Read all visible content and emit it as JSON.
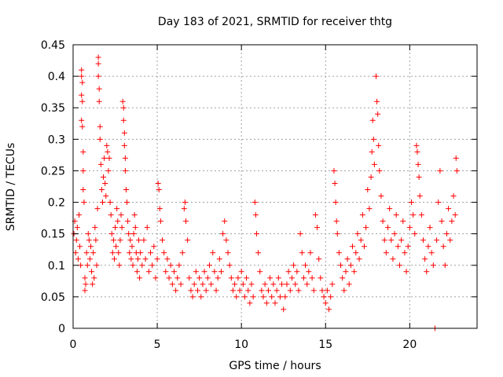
{
  "chart_data": {
    "type": "scatter",
    "title": "Day 183 of 2021, SRMTID for receiver thtg",
    "xlabel": "GPS time / hours",
    "ylabel": "SRMTID / TECUs",
    "xlim": [
      0,
      24
    ],
    "ylim": [
      0,
      0.45
    ],
    "grid": true,
    "marker": "+",
    "marker_color": "#ff0000",
    "x_ticks": [
      0,
      5,
      10,
      15,
      20
    ],
    "x_tick_labels": [
      "0",
      "5",
      "10",
      "15",
      "20"
    ],
    "y_ticks": [
      0,
      0.05,
      0.1,
      0.15,
      0.2,
      0.25,
      0.3,
      0.35,
      0.4,
      0.45
    ],
    "y_tick_labels": [
      "0",
      "0.05",
      "0.1",
      "0.15",
      "0.2",
      "0.25",
      "0.3",
      "0.35",
      "0.4",
      "0.45"
    ],
    "series": [
      {
        "name": "SRMTID",
        "points": [
          [
            0.05,
            0.15
          ],
          [
            0.1,
            0.17
          ],
          [
            0.15,
            0.12
          ],
          [
            0.2,
            0.14
          ],
          [
            0.25,
            0.16
          ],
          [
            0.3,
            0.11
          ],
          [
            0.35,
            0.18
          ],
          [
            0.4,
            0.13
          ],
          [
            0.45,
            0.1
          ],
          [
            0.5,
            0.41
          ],
          [
            0.5,
            0.4
          ],
          [
            0.5,
            0.37
          ],
          [
            0.5,
            0.33
          ],
          [
            0.55,
            0.39
          ],
          [
            0.55,
            0.36
          ],
          [
            0.55,
            0.32
          ],
          [
            0.6,
            0.28
          ],
          [
            0.6,
            0.25
          ],
          [
            0.6,
            0.22
          ],
          [
            0.65,
            0.2
          ],
          [
            0.7,
            0.08
          ],
          [
            0.7,
            0.06
          ],
          [
            0.75,
            0.07
          ],
          [
            0.8,
            0.12
          ],
          [
            0.85,
            0.1
          ],
          [
            0.9,
            0.15
          ],
          [
            0.95,
            0.14
          ],
          [
            1.0,
            0.11
          ],
          [
            1.05,
            0.13
          ],
          [
            1.1,
            0.09
          ],
          [
            1.15,
            0.07
          ],
          [
            1.2,
            0.12
          ],
          [
            1.25,
            0.08
          ],
          [
            1.3,
            0.16
          ],
          [
            1.35,
            0.14
          ],
          [
            1.4,
            0.1
          ],
          [
            1.45,
            0.19
          ],
          [
            1.5,
            0.43
          ],
          [
            1.5,
            0.42
          ],
          [
            1.5,
            0.4
          ],
          [
            1.55,
            0.38
          ],
          [
            1.55,
            0.36
          ],
          [
            1.6,
            0.32
          ],
          [
            1.6,
            0.3
          ],
          [
            1.65,
            0.26
          ],
          [
            1.7,
            0.22
          ],
          [
            1.75,
            0.2
          ],
          [
            1.8,
            0.24
          ],
          [
            1.85,
            0.27
          ],
          [
            1.9,
            0.23
          ],
          [
            1.95,
            0.21
          ],
          [
            2.0,
            0.29
          ],
          [
            2.05,
            0.28
          ],
          [
            2.1,
            0.25
          ],
          [
            2.15,
            0.27
          ],
          [
            2.2,
            0.2
          ],
          [
            2.25,
            0.18
          ],
          [
            2.3,
            0.15
          ],
          [
            2.35,
            0.12
          ],
          [
            2.4,
            0.14
          ],
          [
            2.45,
            0.11
          ],
          [
            2.5,
            0.16
          ],
          [
            2.55,
            0.13
          ],
          [
            2.6,
            0.19
          ],
          [
            2.65,
            0.17
          ],
          [
            2.7,
            0.12
          ],
          [
            2.75,
            0.1
          ],
          [
            2.8,
            0.14
          ],
          [
            2.85,
            0.18
          ],
          [
            2.9,
            0.16
          ],
          [
            2.95,
            0.36
          ],
          [
            3.0,
            0.35
          ],
          [
            3.0,
            0.33
          ],
          [
            3.05,
            0.31
          ],
          [
            3.05,
            0.29
          ],
          [
            3.1,
            0.27
          ],
          [
            3.1,
            0.25
          ],
          [
            3.15,
            0.22
          ],
          [
            3.2,
            0.2
          ],
          [
            3.25,
            0.17
          ],
          [
            3.3,
            0.15
          ],
          [
            3.35,
            0.12
          ],
          [
            3.4,
            0.14
          ],
          [
            3.45,
            0.11
          ],
          [
            3.5,
            0.13
          ],
          [
            3.55,
            0.1
          ],
          [
            3.6,
            0.15
          ],
          [
            3.65,
            0.18
          ],
          [
            3.7,
            0.16
          ],
          [
            3.75,
            0.12
          ],
          [
            3.8,
            0.09
          ],
          [
            3.85,
            0.11
          ],
          [
            3.9,
            0.14
          ],
          [
            3.95,
            0.08
          ],
          [
            4.0,
            0.12
          ],
          [
            4.1,
            0.1
          ],
          [
            4.2,
            0.14
          ],
          [
            4.3,
            0.11
          ],
          [
            4.4,
            0.16
          ],
          [
            4.5,
            0.09
          ],
          [
            4.6,
            0.12
          ],
          [
            4.7,
            0.1
          ],
          [
            4.8,
            0.13
          ],
          [
            4.9,
            0.08
          ],
          [
            5.0,
            0.11
          ],
          [
            5.05,
            0.23
          ],
          [
            5.1,
            0.22
          ],
          [
            5.15,
            0.19
          ],
          [
            5.2,
            0.17
          ],
          [
            5.3,
            0.14
          ],
          [
            5.4,
            0.12
          ],
          [
            5.5,
            0.09
          ],
          [
            5.6,
            0.11
          ],
          [
            5.7,
            0.08
          ],
          [
            5.8,
            0.1
          ],
          [
            5.9,
            0.07
          ],
          [
            6.0,
            0.09
          ],
          [
            6.1,
            0.06
          ],
          [
            6.2,
            0.08
          ],
          [
            6.3,
            0.1
          ],
          [
            6.4,
            0.07
          ],
          [
            6.5,
            0.12
          ],
          [
            6.6,
            0.19
          ],
          [
            6.65,
            0.2
          ],
          [
            6.7,
            0.17
          ],
          [
            6.8,
            0.14
          ],
          [
            6.9,
            0.08
          ],
          [
            7.0,
            0.06
          ],
          [
            7.1,
            0.05
          ],
          [
            7.2,
            0.07
          ],
          [
            7.3,
            0.09
          ],
          [
            7.4,
            0.06
          ],
          [
            7.5,
            0.08
          ],
          [
            7.6,
            0.05
          ],
          [
            7.7,
            0.07
          ],
          [
            7.8,
            0.09
          ],
          [
            7.9,
            0.06
          ],
          [
            8.0,
            0.08
          ],
          [
            8.1,
            0.1
          ],
          [
            8.2,
            0.07
          ],
          [
            8.3,
            0.12
          ],
          [
            8.4,
            0.09
          ],
          [
            8.5,
            0.06
          ],
          [
            8.6,
            0.08
          ],
          [
            8.7,
            0.11
          ],
          [
            8.8,
            0.09
          ],
          [
            8.9,
            0.15
          ],
          [
            9.0,
            0.17
          ],
          [
            9.1,
            0.14
          ],
          [
            9.2,
            0.12
          ],
          [
            9.3,
            0.1
          ],
          [
            9.4,
            0.08
          ],
          [
            9.5,
            0.06
          ],
          [
            9.6,
            0.07
          ],
          [
            9.7,
            0.05
          ],
          [
            9.8,
            0.08
          ],
          [
            9.9,
            0.06
          ],
          [
            10.0,
            0.09
          ],
          [
            10.1,
            0.07
          ],
          [
            10.2,
            0.05
          ],
          [
            10.3,
            0.08
          ],
          [
            10.4,
            0.06
          ],
          [
            10.5,
            0.04
          ],
          [
            10.6,
            0.07
          ],
          [
            10.7,
            0.05
          ],
          [
            10.8,
            0.2
          ],
          [
            10.85,
            0.18
          ],
          [
            10.9,
            0.15
          ],
          [
            11.0,
            0.12
          ],
          [
            11.1,
            0.09
          ],
          [
            11.2,
            0.06
          ],
          [
            11.3,
            0.05
          ],
          [
            11.4,
            0.07
          ],
          [
            11.5,
            0.04
          ],
          [
            11.6,
            0.06
          ],
          [
            11.7,
            0.08
          ],
          [
            11.8,
            0.05
          ],
          [
            11.9,
            0.07
          ],
          [
            12.0,
            0.04
          ],
          [
            12.1,
            0.06
          ],
          [
            12.2,
            0.08
          ],
          [
            12.3,
            0.05
          ],
          [
            12.4,
            0.07
          ],
          [
            12.5,
            0.03
          ],
          [
            12.6,
            0.05
          ],
          [
            12.7,
            0.07
          ],
          [
            12.8,
            0.09
          ],
          [
            12.9,
            0.06
          ],
          [
            13.0,
            0.08
          ],
          [
            13.1,
            0.1
          ],
          [
            13.2,
            0.07
          ],
          [
            13.3,
            0.09
          ],
          [
            13.4,
            0.06
          ],
          [
            13.5,
            0.15
          ],
          [
            13.6,
            0.12
          ],
          [
            13.7,
            0.08
          ],
          [
            13.8,
            0.1
          ],
          [
            13.9,
            0.07
          ],
          [
            14.0,
            0.09
          ],
          [
            14.1,
            0.12
          ],
          [
            14.2,
            0.08
          ],
          [
            14.3,
            0.06
          ],
          [
            14.4,
            0.18
          ],
          [
            14.5,
            0.16
          ],
          [
            14.6,
            0.11
          ],
          [
            14.7,
            0.08
          ],
          [
            14.8,
            0.06
          ],
          [
            14.9,
            0.05
          ],
          [
            15.0,
            0.04
          ],
          [
            15.1,
            0.06
          ],
          [
            15.2,
            0.03
          ],
          [
            15.3,
            0.05
          ],
          [
            15.4,
            0.07
          ],
          [
            15.5,
            0.25
          ],
          [
            15.55,
            0.23
          ],
          [
            15.6,
            0.2
          ],
          [
            15.65,
            0.17
          ],
          [
            15.7,
            0.15
          ],
          [
            15.8,
            0.12
          ],
          [
            15.9,
            0.1
          ],
          [
            16.0,
            0.08
          ],
          [
            16.1,
            0.06
          ],
          [
            16.2,
            0.09
          ],
          [
            16.3,
            0.11
          ],
          [
            16.4,
            0.07
          ],
          [
            16.5,
            0.1
          ],
          [
            16.6,
            0.13
          ],
          [
            16.7,
            0.09
          ],
          [
            16.8,
            0.12
          ],
          [
            16.9,
            0.15
          ],
          [
            17.0,
            0.11
          ],
          [
            17.1,
            0.14
          ],
          [
            17.2,
            0.18
          ],
          [
            17.3,
            0.13
          ],
          [
            17.4,
            0.16
          ],
          [
            17.5,
            0.22
          ],
          [
            17.6,
            0.19
          ],
          [
            17.7,
            0.24
          ],
          [
            17.75,
            0.28
          ],
          [
            17.8,
            0.33
          ],
          [
            17.85,
            0.3
          ],
          [
            17.9,
            0.26
          ],
          [
            18.0,
            0.4
          ],
          [
            18.05,
            0.36
          ],
          [
            18.1,
            0.34
          ],
          [
            18.15,
            0.29
          ],
          [
            18.2,
            0.25
          ],
          [
            18.3,
            0.21
          ],
          [
            18.4,
            0.17
          ],
          [
            18.5,
            0.14
          ],
          [
            18.6,
            0.12
          ],
          [
            18.7,
            0.16
          ],
          [
            18.8,
            0.19
          ],
          [
            18.9,
            0.14
          ],
          [
            19.0,
            0.11
          ],
          [
            19.1,
            0.15
          ],
          [
            19.2,
            0.18
          ],
          [
            19.3,
            0.13
          ],
          [
            19.4,
            0.1
          ],
          [
            19.5,
            0.14
          ],
          [
            19.6,
            0.17
          ],
          [
            19.7,
            0.12
          ],
          [
            19.8,
            0.09
          ],
          [
            19.9,
            0.13
          ],
          [
            20.0,
            0.16
          ],
          [
            20.1,
            0.2
          ],
          [
            20.2,
            0.18
          ],
          [
            20.3,
            0.15
          ],
          [
            20.4,
            0.29
          ],
          [
            20.45,
            0.28
          ],
          [
            20.5,
            0.26
          ],
          [
            20.55,
            0.24
          ],
          [
            20.6,
            0.21
          ],
          [
            20.7,
            0.18
          ],
          [
            20.8,
            0.14
          ],
          [
            20.9,
            0.11
          ],
          [
            21.0,
            0.09
          ],
          [
            21.1,
            0.13
          ],
          [
            21.2,
            0.16
          ],
          [
            21.3,
            0.12
          ],
          [
            21.4,
            0.1
          ],
          [
            21.5,
            0.0
          ],
          [
            21.6,
            0.14
          ],
          [
            21.7,
            0.2
          ],
          [
            21.8,
            0.25
          ],
          [
            21.9,
            0.17
          ],
          [
            22.0,
            0.13
          ],
          [
            22.1,
            0.1
          ],
          [
            22.2,
            0.15
          ],
          [
            22.3,
            0.19
          ],
          [
            22.4,
            0.14
          ],
          [
            22.5,
            0.17
          ],
          [
            22.6,
            0.21
          ],
          [
            22.7,
            0.18
          ],
          [
            22.75,
            0.27
          ],
          [
            22.8,
            0.25
          ]
        ]
      }
    ]
  }
}
